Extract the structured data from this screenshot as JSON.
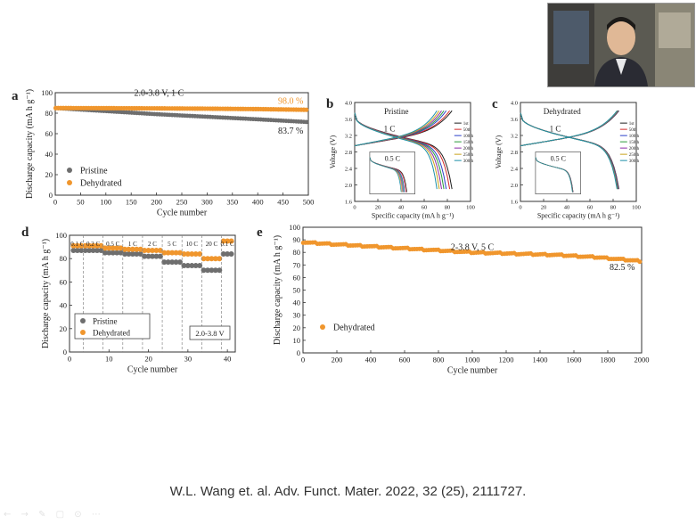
{
  "citation": "W.L. Wang et. al. Adv. Funct. Mater. 2022, 32 (25), 2111727.",
  "toolbar_icons": "← → ✎ ▢ ⊙ ⋯",
  "colors": {
    "pristine": "#6e6e6e",
    "dehydrated": "#f0962d",
    "annotation_orange": "#f0962d"
  },
  "chart_data": [
    {
      "panel": "a",
      "type": "scatter",
      "xlabel": "Cycle number",
      "ylabel": "Discharge capacity (mA h g⁻¹)",
      "xlim": [
        0,
        500
      ],
      "ylim": [
        0,
        100
      ],
      "xticks": [
        0,
        50,
        100,
        150,
        200,
        250,
        300,
        350,
        400,
        450,
        500
      ],
      "yticks": [
        0,
        20,
        40,
        60,
        80,
        100
      ],
      "annotations": [
        "2.0-3.8 V, 1 C",
        "98.0 %",
        "83.7 %"
      ],
      "legend": "bottom-left",
      "series": [
        {
          "name": "Pristine",
          "x": [
            0,
            100,
            200,
            300,
            400,
            500
          ],
          "y": [
            85,
            82,
            79,
            76.5,
            74,
            71.3
          ]
        },
        {
          "name": "Dehydrated",
          "x": [
            0,
            100,
            200,
            300,
            400,
            500
          ],
          "y": [
            85,
            84.9,
            84.7,
            84.4,
            84,
            83.3
          ]
        }
      ]
    },
    {
      "panel": "b",
      "type": "line",
      "title": "Pristine",
      "xlabel": "Specific capacity (mA h g⁻¹)",
      "ylabel": "Voltage (V)",
      "xlim": [
        0,
        100
      ],
      "ylim": [
        1.6,
        4.0
      ],
      "xticks": [
        0,
        20,
        40,
        60,
        80,
        100
      ],
      "yticks": [
        1.6,
        2.0,
        2.4,
        2.8,
        3.2,
        3.6,
        4.0
      ],
      "rate_label": "1 C",
      "inset_label": "0.5 C",
      "series": [
        {
          "name": "1st",
          "capacity": 84,
          "color": "#1f1f1f"
        },
        {
          "name": "50th",
          "capacity": 82,
          "color": "#d22a2a"
        },
        {
          "name": "100th",
          "capacity": 79,
          "color": "#2b3fc9"
        },
        {
          "name": "150th",
          "capacity": 77,
          "color": "#2a9a3a"
        },
        {
          "name": "200th",
          "capacity": 75,
          "color": "#8a2aa6"
        },
        {
          "name": "250th",
          "capacity": 73,
          "color": "#c9a21b"
        },
        {
          "name": "300th",
          "capacity": 71,
          "color": "#1b8fa8"
        }
      ]
    },
    {
      "panel": "c",
      "type": "line",
      "title": "Dehydrated",
      "xlabel": "Specific capacity (mA h g⁻¹)",
      "ylabel": "Voltage (V)",
      "xlim": [
        0,
        100
      ],
      "ylim": [
        1.6,
        4.0
      ],
      "xticks": [
        0,
        20,
        40,
        60,
        80,
        100
      ],
      "yticks": [
        1.6,
        2.0,
        2.4,
        2.8,
        3.2,
        3.6,
        4.0
      ],
      "rate_label": "1 C",
      "inset_label": "0.5 C",
      "series": [
        {
          "name": "1st",
          "capacity": 85,
          "color": "#1f1f1f"
        },
        {
          "name": "50th",
          "capacity": 84.8,
          "color": "#d22a2a"
        },
        {
          "name": "100th",
          "capacity": 84.6,
          "color": "#2b3fc9"
        },
        {
          "name": "150th",
          "capacity": 84.3,
          "color": "#2a9a3a"
        },
        {
          "name": "200th",
          "capacity": 84,
          "color": "#8a2aa6"
        },
        {
          "name": "250th",
          "capacity": 83.7,
          "color": "#c9a21b"
        },
        {
          "name": "300th",
          "capacity": 83.4,
          "color": "#1b8fa8"
        }
      ]
    },
    {
      "panel": "d",
      "type": "scatter",
      "xlabel": "Cycle number",
      "ylabel": "Discharge capacity (mA h g⁻¹)",
      "xlim": [
        0,
        42
      ],
      "ylim": [
        0,
        100
      ],
      "xticks": [
        0,
        10,
        20,
        30,
        40
      ],
      "yticks": [
        0,
        20,
        40,
        60,
        80,
        100
      ],
      "box_label": "2.0-3.8 V",
      "legend": "bottom-left",
      "rate_labels": [
        "0.1 C",
        "0.2 C",
        "0.5 C",
        "1 C",
        "2 C",
        "5 C",
        "10 C",
        "20 C",
        "0.1 C"
      ],
      "segments": [
        {
          "start": 1,
          "end": 3,
          "pristine": 87,
          "dehydrated": 91
        },
        {
          "start": 4,
          "end": 8,
          "pristine": 87,
          "dehydrated": 91
        },
        {
          "start": 9,
          "end": 13,
          "pristine": 85,
          "dehydrated": 89
        },
        {
          "start": 14,
          "end": 18,
          "pristine": 84,
          "dehydrated": 88
        },
        {
          "start": 19,
          "end": 23,
          "pristine": 82,
          "dehydrated": 87
        },
        {
          "start": 24,
          "end": 28,
          "pristine": 77,
          "dehydrated": 85
        },
        {
          "start": 29,
          "end": 33,
          "pristine": 74,
          "dehydrated": 84
        },
        {
          "start": 34,
          "end": 38,
          "pristine": 70,
          "dehydrated": 80
        },
        {
          "start": 39,
          "end": 41,
          "pristine": 84,
          "dehydrated": 95
        }
      ],
      "series_names": [
        "Pristine",
        "Dehydrated"
      ]
    },
    {
      "panel": "e",
      "type": "scatter",
      "xlabel": "Cycle number",
      "ylabel": "Discharge capacity (mA h g⁻¹)",
      "xlim": [
        0,
        2000
      ],
      "ylim": [
        0,
        100
      ],
      "xticks": [
        0,
        200,
        400,
        600,
        800,
        1000,
        1200,
        1400,
        1600,
        1800,
        2000
      ],
      "yticks": [
        0,
        10,
        20,
        30,
        40,
        50,
        60,
        70,
        80,
        90,
        100
      ],
      "annotations": [
        "2-3.8 V, 5 C",
        "82.5 %"
      ],
      "legend": "bottom-left",
      "series": [
        {
          "name": "Dehydrated",
          "x": [
            0,
            250,
            500,
            750,
            1000,
            1250,
            1500,
            1750,
            2000
          ],
          "y": [
            88,
            86,
            84,
            82,
            80,
            79,
            78,
            76,
            73
          ]
        }
      ]
    }
  ]
}
